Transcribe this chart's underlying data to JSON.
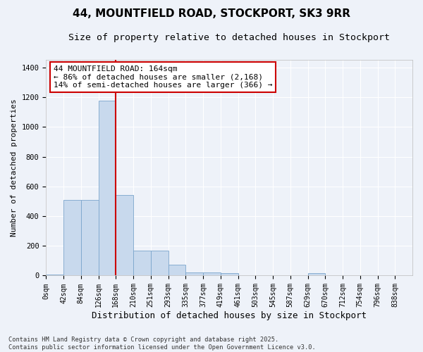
{
  "title": "44, MOUNTFIELD ROAD, STOCKPORT, SK3 9RR",
  "subtitle": "Size of property relative to detached houses in Stockport",
  "xlabel": "Distribution of detached houses by size in Stockport",
  "ylabel": "Number of detached properties",
  "bin_labels": [
    "0sqm",
    "42sqm",
    "84sqm",
    "126sqm",
    "168sqm",
    "210sqm",
    "251sqm",
    "293sqm",
    "335sqm",
    "377sqm",
    "419sqm",
    "461sqm",
    "503sqm",
    "545sqm",
    "587sqm",
    "629sqm",
    "670sqm",
    "712sqm",
    "754sqm",
    "796sqm",
    "838sqm"
  ],
  "bar_values": [
    8,
    510,
    510,
    1175,
    540,
    170,
    170,
    75,
    20,
    20,
    15,
    0,
    0,
    0,
    0,
    15,
    0,
    0,
    0,
    0,
    4
  ],
  "bar_color": "#c8d9ed",
  "bar_edgecolor": "#7ba5cc",
  "vline_color": "#cc0000",
  "annotation_text": "44 MOUNTFIELD ROAD: 164sqm\n← 86% of detached houses are smaller (2,168)\n14% of semi-detached houses are larger (366) →",
  "annotation_box_color": "#ffffff",
  "annotation_box_edgecolor": "#cc0000",
  "ylim": [
    0,
    1450
  ],
  "yticks": [
    0,
    200,
    400,
    600,
    800,
    1000,
    1200,
    1400
  ],
  "footnote": "Contains HM Land Registry data © Crown copyright and database right 2025.\nContains public sector information licensed under the Open Government Licence v3.0.",
  "background_color": "#eef2f9",
  "grid_color": "#ffffff",
  "title_fontsize": 11,
  "subtitle_fontsize": 9.5,
  "annotation_fontsize": 8,
  "tick_fontsize": 7,
  "ylabel_fontsize": 8,
  "xlabel_fontsize": 9
}
